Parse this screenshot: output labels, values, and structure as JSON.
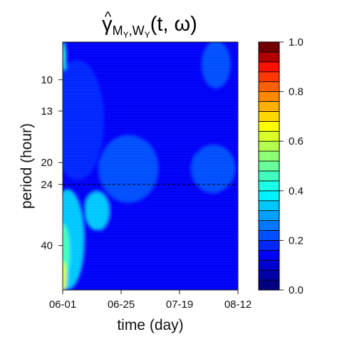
{
  "chart_data": {
    "type": "heatmap",
    "title": {
      "hat": "^",
      "symbol": "γ",
      "subscript": "M",
      "sub_y1": "Y",
      "sub_comma": ",W",
      "sub_y2": "Y",
      "args": "(t, ω)"
    },
    "xlabel": "time (day)",
    "ylabel": "period (hour)",
    "x_ticks": [
      {
        "label": "06-01",
        "day": 0
      },
      {
        "label": "06-25",
        "day": 24
      },
      {
        "label": "07-19",
        "day": 48
      },
      {
        "label": "08-12",
        "day": 72
      }
    ],
    "xlim": [
      0,
      72
    ],
    "y_scale": "log",
    "y_ticks": [
      10,
      13,
      20,
      24,
      40
    ],
    "ylim": [
      7.3,
      58
    ],
    "reference_line": {
      "period": 24,
      "style": "dashed"
    },
    "colorbar": {
      "range": [
        0,
        1
      ],
      "levels": 25,
      "ticks": [
        "0.0",
        "0.2",
        "0.4",
        "0.6",
        "0.8",
        "1.0"
      ],
      "colors": [
        "#000080",
        "#0000A8",
        "#0000D0",
        "#0000F8",
        "#0028FF",
        "#0050FF",
        "#0078FF",
        "#00A0FF",
        "#00C8FF",
        "#00F0FF",
        "#1AFFE5",
        "#40FFBF",
        "#66FF99",
        "#8CFF73",
        "#B3FF4C",
        "#D9FF26",
        "#FFFF00",
        "#FFD700",
        "#FFAF00",
        "#FF8800",
        "#FF6000",
        "#FF3800",
        "#FF1000",
        "#B00000",
        "#700000"
      ]
    },
    "regions": [
      {
        "x": 0,
        "period": 52,
        "rx": 1.6,
        "ry": 0.13,
        "value": 0.6
      },
      {
        "x": 0,
        "period": 42,
        "rx": 3,
        "ry": 0.23,
        "value": 0.45
      },
      {
        "x": 0.5,
        "period": 8.2,
        "rx": 0.9,
        "ry": 0.12,
        "value": 0.4
      },
      {
        "x": 2,
        "period": 38,
        "rx": 7,
        "ry": 0.42,
        "value": 0.32
      },
      {
        "x": 14,
        "period": 30,
        "rx": 5,
        "ry": 0.16,
        "value": 0.32
      },
      {
        "x": 27,
        "period": 21,
        "rx": 12,
        "ry": 0.28,
        "value": 0.23
      },
      {
        "x": 62,
        "period": 21,
        "rx": 9,
        "ry": 0.2,
        "value": 0.22
      },
      {
        "x": 63,
        "period": 8.8,
        "rx": 6,
        "ry": 0.2,
        "value": 0.22
      },
      {
        "x": 6,
        "period": 14,
        "rx": 11,
        "ry": 0.5,
        "value": 0.18
      },
      {
        "x": 36,
        "period": 26,
        "rx": 28,
        "ry": 0.45,
        "value": 0.13
      }
    ],
    "base_value": 0.12
  }
}
